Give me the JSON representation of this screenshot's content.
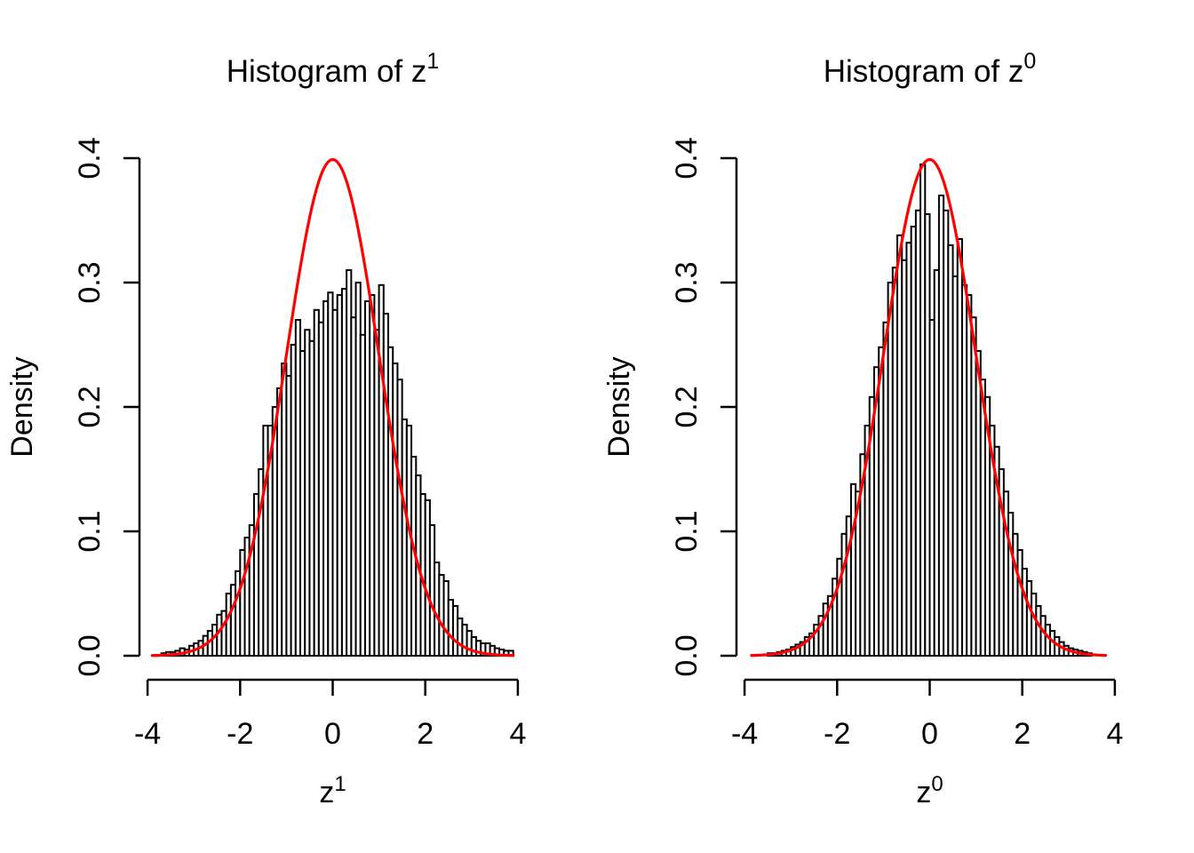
{
  "figure": {
    "background_color": "#FFFFFF",
    "foreground_color": "#000000",
    "curve_color": "#FF0000",
    "bar_fill": "#FFFFFF",
    "bar_stroke": "#000000"
  },
  "chart_data": [
    {
      "type": "bar",
      "subtype": "histogram-with-density-curve",
      "title": {
        "base": "Histogram of z",
        "sup": "1"
      },
      "xlabel": {
        "base": "z",
        "sup": "1"
      },
      "ylabel": "Density",
      "x_tick_labels": [
        "-4",
        "-2",
        "0",
        "2",
        "4"
      ],
      "x_tick_values": [
        -4,
        -2,
        0,
        2,
        4
      ],
      "y_tick_labels": [
        "0.0",
        "0.1",
        "0.2",
        "0.3",
        "0.4"
      ],
      "y_tick_values": [
        0,
        0.1,
        0.2,
        0.3,
        0.4
      ],
      "xlim": [
        -4,
        4
      ],
      "ylim": [
        0,
        0.4
      ],
      "grid": false,
      "legend": false,
      "bin_width": 0.1,
      "bin_start": -3.7,
      "bar_heights": [
        0.002,
        0.003,
        0.003,
        0.004,
        0.006,
        0.005,
        0.008,
        0.01,
        0.012,
        0.016,
        0.02,
        0.025,
        0.033,
        0.036,
        0.05,
        0.057,
        0.068,
        0.085,
        0.095,
        0.105,
        0.13,
        0.15,
        0.185,
        0.185,
        0.2,
        0.215,
        0.235,
        0.225,
        0.25,
        0.27,
        0.245,
        0.262,
        0.253,
        0.278,
        0.268,
        0.285,
        0.292,
        0.278,
        0.29,
        0.295,
        0.31,
        0.272,
        0.3,
        0.258,
        0.285,
        0.29,
        0.262,
        0.298,
        0.275,
        0.248,
        0.235,
        0.222,
        0.19,
        0.185,
        0.16,
        0.145,
        0.13,
        0.125,
        0.105,
        0.075,
        0.065,
        0.06,
        0.045,
        0.04,
        0.03,
        0.025,
        0.02,
        0.015,
        0.012,
        0.01,
        0.01,
        0.008,
        0.006,
        0.005,
        0.004,
        0.004
      ],
      "overlay_curve": {
        "type": "line",
        "distribution": "normal-density",
        "mean": 0,
        "sd": 1,
        "peak_density": 0.3989,
        "x_range": [
          -3.9,
          3.9
        ],
        "color": "#FF0000"
      }
    },
    {
      "type": "bar",
      "subtype": "histogram-with-density-curve",
      "title": {
        "base": "Histogram of z",
        "sup": "0"
      },
      "xlabel": {
        "base": "z",
        "sup": "0"
      },
      "ylabel": "Density",
      "x_tick_labels": [
        "-4",
        "-2",
        "0",
        "2",
        "4"
      ],
      "x_tick_values": [
        -4,
        -2,
        0,
        2,
        4
      ],
      "y_tick_labels": [
        "0.0",
        "0.1",
        "0.2",
        "0.3",
        "0.4"
      ],
      "y_tick_values": [
        0,
        0.1,
        0.2,
        0.3,
        0.4
      ],
      "xlim": [
        -4,
        4
      ],
      "ylim": [
        0,
        0.4
      ],
      "grid": false,
      "legend": false,
      "bin_width": 0.1,
      "bin_start": -3.5,
      "bar_heights": [
        0.002,
        0.002,
        0.003,
        0.004,
        0.005,
        0.007,
        0.009,
        0.011,
        0.015,
        0.018,
        0.025,
        0.032,
        0.042,
        0.048,
        0.062,
        0.078,
        0.098,
        0.112,
        0.138,
        0.132,
        0.162,
        0.185,
        0.208,
        0.232,
        0.248,
        0.268,
        0.3,
        0.312,
        0.338,
        0.318,
        0.332,
        0.345,
        0.358,
        0.395,
        0.355,
        0.27,
        0.31,
        0.37,
        0.358,
        0.33,
        0.305,
        0.335,
        0.298,
        0.29,
        0.272,
        0.245,
        0.222,
        0.208,
        0.185,
        0.168,
        0.15,
        0.132,
        0.115,
        0.098,
        0.085,
        0.07,
        0.06,
        0.05,
        0.04,
        0.032,
        0.025,
        0.02,
        0.015,
        0.011,
        0.008,
        0.006,
        0.005,
        0.004,
        0.003,
        0.002
      ],
      "overlay_curve": {
        "type": "line",
        "distribution": "normal-density",
        "mean": 0,
        "sd": 1,
        "peak_density": 0.3989,
        "x_range": [
          -3.85,
          3.8
        ],
        "color": "#FF0000"
      }
    }
  ]
}
